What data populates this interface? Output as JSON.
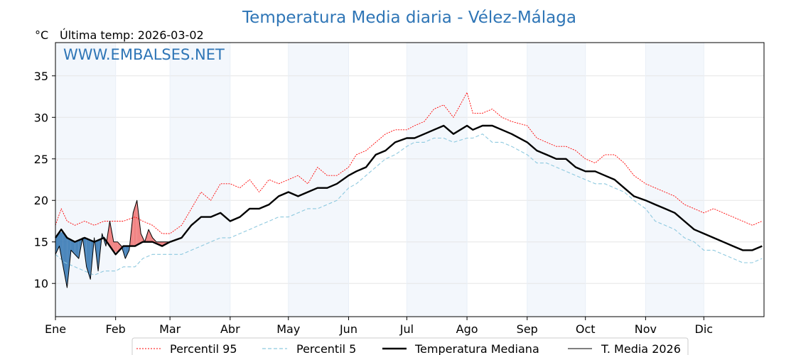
{
  "chart_data": {
    "type": "line",
    "title": "Temperatura Media diaria - Vélez-Málaga",
    "unit": "°C",
    "last_temp_label": "Última temp: 2026-03-02",
    "watermark": "WWW.EMBALSES.NET",
    "ylim": [
      6,
      39
    ],
    "yticks": [
      10,
      15,
      20,
      25,
      30,
      35
    ],
    "xlim": [
      0,
      365
    ],
    "months": [
      {
        "label": "Ene",
        "day": 0
      },
      {
        "label": "Feb",
        "day": 31
      },
      {
        "label": "Mar",
        "day": 59
      },
      {
        "label": "Abr",
        "day": 90
      },
      {
        "label": "May",
        "day": 120
      },
      {
        "label": "Jun",
        "day": 151
      },
      {
        "label": "Jul",
        "day": 181
      },
      {
        "label": "Ago",
        "day": 212
      },
      {
        "label": "Sep",
        "day": 243
      },
      {
        "label": "Oct",
        "day": 273
      },
      {
        "label": "Nov",
        "day": 304
      },
      {
        "label": "Dic",
        "day": 334
      }
    ],
    "grid": true,
    "legend_position": "bottom",
    "series": [
      {
        "name": "Percentil 95",
        "color": "#ff0000",
        "style": "dotted",
        "x": [
          0,
          3,
          6,
          10,
          15,
          20,
          25,
          31,
          35,
          41,
          45,
          50,
          55,
          59,
          65,
          70,
          75,
          80,
          85,
          90,
          95,
          100,
          105,
          110,
          115,
          120,
          125,
          130,
          135,
          140,
          145,
          151,
          155,
          160,
          165,
          170,
          175,
          181,
          185,
          190,
          195,
          200,
          205,
          212,
          215,
          220,
          225,
          230,
          235,
          243,
          248,
          253,
          258,
          263,
          268,
          273,
          278,
          283,
          288,
          293,
          298,
          304,
          309,
          314,
          319,
          324,
          329,
          334,
          339,
          344,
          349,
          354,
          359,
          364
        ],
        "y": [
          17.0,
          19.0,
          17.5,
          17.0,
          17.5,
          17.0,
          17.5,
          17.5,
          17.5,
          18.0,
          17.5,
          17.0,
          16.0,
          16.0,
          17.0,
          19.0,
          21.0,
          20.0,
          22.0,
          22.0,
          21.5,
          22.5,
          21.0,
          22.5,
          22.0,
          22.5,
          23.0,
          22.0,
          24.0,
          23.0,
          23.0,
          24.0,
          25.5,
          26.0,
          27.0,
          28.0,
          28.5,
          28.5,
          29.0,
          29.5,
          31.0,
          31.5,
          30.0,
          33.0,
          30.5,
          30.5,
          31.0,
          30.0,
          29.5,
          29.0,
          27.5,
          27.0,
          26.5,
          26.5,
          26.0,
          25.0,
          24.5,
          25.5,
          25.5,
          24.5,
          23.0,
          22.0,
          21.5,
          21.0,
          20.5,
          19.5,
          19.0,
          18.5,
          19.0,
          18.5,
          18.0,
          17.5,
          17.0,
          17.5
        ]
      },
      {
        "name": "Percentil 5",
        "color": "#8ec9df",
        "style": "dashed",
        "x": [
          0,
          5,
          10,
          15,
          20,
          25,
          31,
          35,
          41,
          45,
          50,
          55,
          59,
          65,
          70,
          75,
          80,
          85,
          90,
          95,
          100,
          105,
          110,
          115,
          120,
          125,
          130,
          135,
          140,
          145,
          151,
          155,
          160,
          165,
          170,
          175,
          181,
          185,
          190,
          195,
          200,
          205,
          212,
          215,
          220,
          225,
          230,
          235,
          243,
          248,
          253,
          258,
          263,
          268,
          273,
          278,
          283,
          288,
          293,
          298,
          304,
          309,
          314,
          319,
          324,
          329,
          334,
          339,
          344,
          349,
          354,
          359,
          364
        ],
        "y": [
          13.5,
          12.5,
          12.0,
          11.5,
          11.0,
          11.5,
          11.5,
          12.0,
          12.0,
          13.0,
          13.5,
          13.5,
          13.5,
          13.5,
          14.0,
          14.5,
          15.0,
          15.5,
          15.5,
          16.0,
          16.5,
          17.0,
          17.5,
          18.0,
          18.0,
          18.5,
          19.0,
          19.0,
          19.5,
          20.0,
          21.5,
          22.0,
          23.0,
          24.0,
          25.0,
          25.5,
          26.5,
          27.0,
          27.0,
          27.5,
          27.5,
          27.0,
          27.5,
          27.5,
          28.0,
          27.0,
          27.0,
          26.5,
          25.5,
          24.5,
          24.5,
          24.0,
          23.5,
          23.0,
          22.5,
          22.0,
          22.0,
          21.5,
          21.0,
          20.0,
          19.0,
          17.5,
          17.0,
          16.5,
          15.5,
          15.0,
          14.0,
          14.0,
          13.5,
          13.0,
          12.5,
          12.5,
          13.0
        ]
      },
      {
        "name": "Temperatura Mediana",
        "color": "#000000",
        "style": "solid-thick",
        "x": [
          0,
          3,
          6,
          10,
          15,
          20,
          25,
          31,
          35,
          41,
          45,
          50,
          55,
          59,
          65,
          70,
          75,
          80,
          85,
          90,
          95,
          100,
          105,
          110,
          115,
          120,
          125,
          130,
          135,
          140,
          145,
          151,
          155,
          160,
          165,
          170,
          175,
          181,
          185,
          190,
          195,
          200,
          205,
          212,
          215,
          220,
          225,
          230,
          235,
          243,
          248,
          253,
          258,
          263,
          268,
          273,
          278,
          283,
          288,
          293,
          298,
          304,
          309,
          314,
          319,
          324,
          329,
          334,
          339,
          344,
          349,
          354,
          359,
          364
        ],
        "y": [
          15.5,
          16.5,
          15.5,
          15.0,
          15.5,
          15.0,
          15.5,
          13.5,
          14.5,
          14.5,
          15.0,
          15.0,
          14.5,
          15.0,
          15.5,
          17.0,
          18.0,
          18.0,
          18.5,
          17.5,
          18.0,
          19.0,
          19.0,
          19.5,
          20.5,
          21.0,
          20.5,
          21.0,
          21.5,
          21.5,
          22.0,
          23.0,
          23.5,
          24.0,
          25.5,
          26.0,
          27.0,
          27.5,
          27.5,
          28.0,
          28.5,
          29.0,
          28.0,
          29.0,
          28.5,
          29.0,
          29.0,
          28.5,
          28.0,
          27.0,
          26.0,
          25.5,
          25.0,
          25.0,
          24.0,
          23.5,
          23.5,
          23.0,
          22.5,
          21.5,
          20.5,
          20.0,
          19.5,
          19.0,
          18.5,
          17.5,
          16.5,
          16.0,
          15.5,
          15.0,
          14.5,
          14.0,
          14.0,
          14.5
        ]
      },
      {
        "name": "T. Media 2026",
        "color": "#000000",
        "style": "solid-thin",
        "x": [
          0,
          2,
          4,
          6,
          8,
          10,
          12,
          14,
          16,
          18,
          20,
          22,
          24,
          26,
          28,
          30,
          32,
          34,
          36,
          38,
          40,
          42,
          44,
          46,
          48,
          50,
          52,
          54,
          56,
          58,
          60
        ],
        "y": [
          13.5,
          14.5,
          12.0,
          9.5,
          14.0,
          13.5,
          13.0,
          15.5,
          12.0,
          10.5,
          15.5,
          11.5,
          16.0,
          14.5,
          17.5,
          15.0,
          15.0,
          14.5,
          13.0,
          14.0,
          18.5,
          20.0,
          16.0,
          15.0,
          16.5,
          15.5,
          15.0,
          15.0,
          15.0,
          15.0,
          15.0
        ]
      }
    ]
  },
  "legend": [
    {
      "label": "Percentil 95"
    },
    {
      "label": "Percentil 5"
    },
    {
      "label": "Temperatura Mediana"
    },
    {
      "label": "T. Media 2026"
    }
  ]
}
